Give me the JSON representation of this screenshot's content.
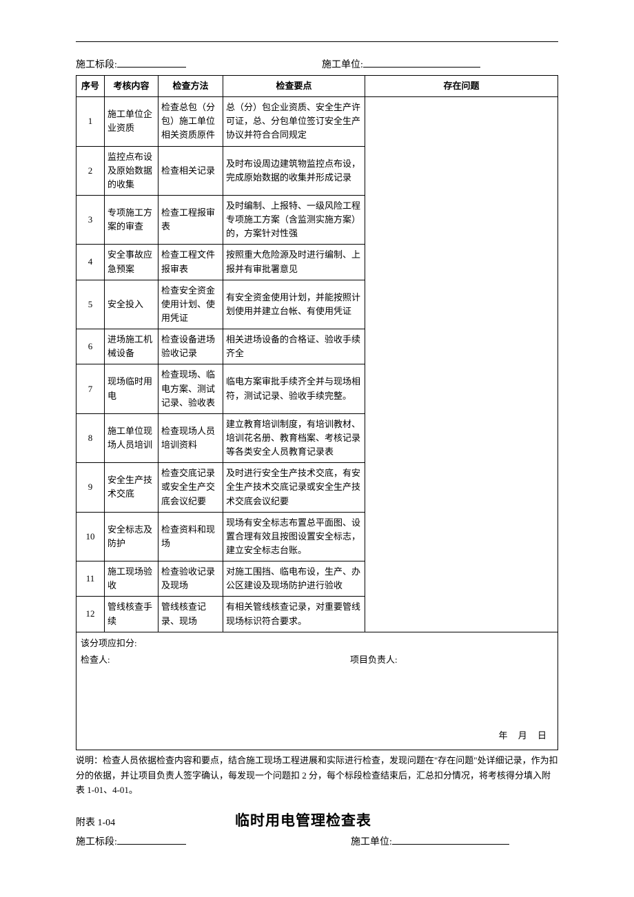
{
  "colors": {
    "text": "#000000",
    "border": "#000000",
    "background": "#ffffff"
  },
  "fonts": {
    "body_family": "SimSun",
    "body_size_pt": 10,
    "heading_family": "SimHei",
    "heading_size_pt": 16
  },
  "header": {
    "section_label": "施工标段:",
    "unit_label": "施工单位:"
  },
  "columns": {
    "seq": "序号",
    "item": "考核内容",
    "method": "检查方法",
    "point": "检查要点",
    "issue": "存在问题"
  },
  "rows": [
    {
      "seq": "1",
      "item": "施工单位企业资质",
      "method": "检查总包（分包）施工单位相关资质原件",
      "point": "总（分）包企业资质、安全生产许可证，总、分包单位签订安全生产协议并符合合同规定"
    },
    {
      "seq": "2",
      "item": "监控点布设及原始数据的收集",
      "method": "检查相关记录",
      "point": "及时布设周边建筑物监控点布设，完成原始数据的收集并形成记录"
    },
    {
      "seq": "3",
      "item": "专项施工方案的审查",
      "method": "检查工程报审表",
      "point": "及时编制、上报特、一级风险工程专项施工方案（含监测实施方案）的，方案针对性强"
    },
    {
      "seq": "4",
      "item": "安全事故应急预案",
      "method": "检查工程文件报审表",
      "point": "按照重大危险源及时进行编制、上报并有审批署意见"
    },
    {
      "seq": "5",
      "item": "安全投入",
      "method": "检查安全资金使用计划、使用凭证",
      "point": "有安全资金使用计划，并能按照计划使用并建立台帐、有使用凭证"
    },
    {
      "seq": "6",
      "item": "进场施工机械设备",
      "method": "检查设备进场验收记录",
      "point": "相关进场设备的合格证、验收手续齐全"
    },
    {
      "seq": "7",
      "item": "现场临时用电",
      "method": "检查现场、临电方案、测试记录、验收表",
      "point": "临电方案审批手续齐全并与现场相符，测试记录、验收手续完整。"
    },
    {
      "seq": "8",
      "item": "施工单位现场人员培训",
      "method": "检查现场人员培训资料",
      "point": "建立教育培训制度，有培训教材、培训花名册、教育档案、考核记录等各类安全人员教育记录表"
    },
    {
      "seq": "9",
      "item": "安全生产技术交底",
      "method": "检查交底记录或安全生产交底会议纪要",
      "point": "及时进行安全生产技术交底，有安全生产技术交底记录或安全生产技术交底会议纪要"
    },
    {
      "seq": "10",
      "item": "安全标志及防护",
      "method": "检查资料和现场",
      "point": "现场有安全标志布置总平面图、设置合理有效且按图设置安全标志，建立安全标志台账。"
    },
    {
      "seq": "11",
      "item": "施工现场验收",
      "method": "检查验收记录及现场",
      "point": "对施工围挡、临电布设，生产、办公区建设及现场防护进行验收"
    },
    {
      "seq": "12",
      "item": "管线核查手续",
      "method": "管线核查记录、现场",
      "point": "有相关管线核查记录，对重要管线现场标识符合要求。"
    }
  ],
  "footer": {
    "deduction_label": "该分项应扣分:",
    "inspector_label": "检查人:",
    "owner_label": "项目负责人:",
    "date_ymd": "年  月  日"
  },
  "note": "说明：检查人员依据检查内容和要点，结合施工现场工程进展和实际进行检查，发现问题在\"存在问题\"处详细记录，作为扣分的依据，并让项目负责人签字确认，每发现一个问题扣 2 分，每个标段检查结束后，汇总扣分情况，将考核得分填入附表 1-01、4-01。",
  "appendix2": {
    "number": "附表 1-04",
    "title": "临时用电管理检查表",
    "section_label": "施工标段:",
    "unit_label": "施工单位:"
  }
}
